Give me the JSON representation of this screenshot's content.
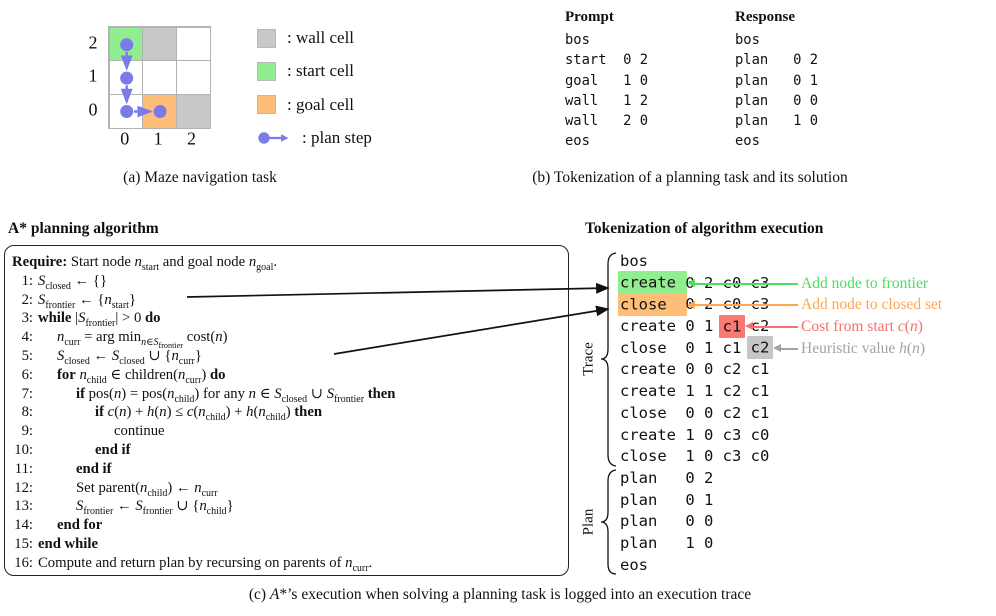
{
  "figure": {
    "panel_a": {
      "caption": "(a) Maze navigation task",
      "grid": {
        "row_labels": [
          "2",
          "1",
          "0"
        ],
        "col_labels": [
          "0",
          "1",
          "2"
        ],
        "cells": [
          [
            "start",
            "wall",
            "empty"
          ],
          [
            "empty",
            "empty",
            "empty"
          ],
          [
            "empty",
            "goal",
            "wall"
          ]
        ]
      },
      "plan_path_cells": [
        "0 2",
        "0 1",
        "0 0",
        "1 0"
      ],
      "legend": [
        {
          "swatch": "wall",
          "label": ": wall cell"
        },
        {
          "swatch": "start",
          "label": ": start cell"
        },
        {
          "swatch": "goal",
          "label": ": goal cell"
        },
        {
          "swatch": "plan-step",
          "label": ": plan step"
        }
      ],
      "colors": {
        "wall": "#c8c8c8",
        "start": "#90ee90",
        "goal": "#ffbe78",
        "plan_step": "#7b7be8"
      }
    },
    "panel_b": {
      "caption": "(b) Tokenization of a planning task and its solution",
      "prompt": {
        "header": "Prompt",
        "rows": [
          "bos",
          "start  0 2",
          "goal   1 0",
          "wall   1 2",
          "wall   2 0",
          "eos"
        ]
      },
      "response": {
        "header": "Response",
        "rows": [
          "bos",
          "plan   0 2",
          "plan   0 1",
          "plan   0 0",
          "plan   1 0",
          "eos"
        ]
      }
    },
    "panel_c": {
      "caption_html": "(c) <i>A</i>*&rsquo;s execution when solving a planning task is logged into an execution trace",
      "algorithm": {
        "title": "A* planning algorithm",
        "lines": [
          {
            "num": "",
            "indent": 0,
            "html": "<b>Require:</b> Start node <i>n</i><sub>start</sub> and goal node <i>n</i><sub>goal</sub>."
          },
          {
            "num": "1:",
            "indent": 0,
            "html": "<i>S</i><sub>closed</sub> &#8592; {}"
          },
          {
            "num": "2:",
            "indent": 0,
            "html": "<i>S</i><sub>frontier</sub> &#8592; {<i>n</i><sub>start</sub>}"
          },
          {
            "num": "3:",
            "indent": 0,
            "html": "<b>while</b> |<i>S</i><sub>frontier</sub>| &gt; 0 <b>do</b>"
          },
          {
            "num": "4:",
            "indent": 1,
            "html": "<i>n</i><sub>curr</sub> = arg min<sub><i>n</i>&#8712;<i>S</i><sub>frontier</sub></sub> cost(<i>n</i>)"
          },
          {
            "num": "5:",
            "indent": 1,
            "html": "<i>S</i><sub>closed</sub> &#8592; <i>S</i><sub>closed</sub> &#8746; {<i>n</i><sub>curr</sub>}"
          },
          {
            "num": "6:",
            "indent": 1,
            "html": "<b>for</b> <i>n</i><sub>child</sub> &#8712; children(<i>n</i><sub>curr</sub>) <b>do</b>"
          },
          {
            "num": "7:",
            "indent": 2,
            "html": "<b>if</b> pos(<i>n</i>) = pos(<i>n</i><sub>child</sub>) for any <i>n</i> &#8712; <i>S</i><sub>closed</sub> &#8746; <i>S</i><sub>frontier</sub> <b>then</b>"
          },
          {
            "num": "8:",
            "indent": 3,
            "html": "<b>if</b> <i>c</i>(<i>n</i>) + <i>h</i>(<i>n</i>) &#8804; <i>c</i>(<i>n</i><sub>child</sub>) + <i>h</i>(<i>n</i><sub>child</sub>) <b>then</b>"
          },
          {
            "num": "9:",
            "indent": 4,
            "html": "continue"
          },
          {
            "num": "10:",
            "indent": 3,
            "html": "<b>end if</b>"
          },
          {
            "num": "11:",
            "indent": 2,
            "html": "<b>end if</b>"
          },
          {
            "num": "12:",
            "indent": 2,
            "html": "Set parent(<i>n</i><sub>child</sub>) &#8592; <i>n</i><sub>curr</sub>"
          },
          {
            "num": "13:",
            "indent": 2,
            "html": "<i>S</i><sub>frontier</sub> &#8592; <i>S</i><sub>frontier</sub> &#8746; {<i>n</i><sub>child</sub>}"
          },
          {
            "num": "14:",
            "indent": 1,
            "html": "<b>end for</b>"
          },
          {
            "num": "15:",
            "indent": 0,
            "html": "<b>end while</b>"
          },
          {
            "num": "16:",
            "indent": 0,
            "html": "Compute and return plan by recursing on parents of <i>n</i><sub>curr</sub>."
          }
        ]
      },
      "trace_panel": {
        "title": "Tokenization of algorithm execution",
        "group_labels": {
          "trace": "Trace",
          "plan": "Plan"
        },
        "rows": [
          {
            "text": "bos"
          },
          {
            "text": "create 0 2 c0 c3",
            "hl": {
              "start": 0,
              "len": 7,
              "color": "green"
            }
          },
          {
            "text": "close  0 2 c0 c3",
            "hl": {
              "start": 0,
              "len": 7,
              "color": "orange"
            }
          },
          {
            "text": "create 0 1 c1 c2",
            "hl": {
              "start": 11,
              "len": 2,
              "color": "red",
              "wide": true
            }
          },
          {
            "text": "close  0 1 c1 c2",
            "hl": {
              "start": 14,
              "len": 2,
              "color": "gray",
              "wide": true
            }
          },
          {
            "text": "create 0 0 c2 c1"
          },
          {
            "text": "create 1 1 c2 c1"
          },
          {
            "text": "close  0 0 c2 c1"
          },
          {
            "text": "create 1 0 c3 c0"
          },
          {
            "text": "close  1 0 c3 c0"
          },
          {
            "text": "plan   0 2"
          },
          {
            "text": "plan   0 1"
          },
          {
            "text": "plan   0 0"
          },
          {
            "text": "plan   1 0"
          },
          {
            "text": "eos"
          }
        ],
        "annotations": [
          {
            "row": 1,
            "color": "green",
            "html": "Add node to frontier"
          },
          {
            "row": 2,
            "color": "orange",
            "html": "Add node to closed set"
          },
          {
            "row": 3,
            "color": "red",
            "html": "Cost from start <i>c</i>(<i>n</i>)"
          },
          {
            "row": 4,
            "color": "gray",
            "html": "Heuristic value <i>h</i>(<i>n</i>)"
          }
        ],
        "annotation_colors": {
          "green": "#4cdf5b",
          "orange": "#ffa64f",
          "red": "#f4716e",
          "gray": "#a0a3a6"
        },
        "highlight_colors": {
          "green": "#90ee90",
          "orange": "#ffbe78",
          "red": "#f87a72",
          "gray": "#c6c6c6"
        }
      }
    }
  }
}
